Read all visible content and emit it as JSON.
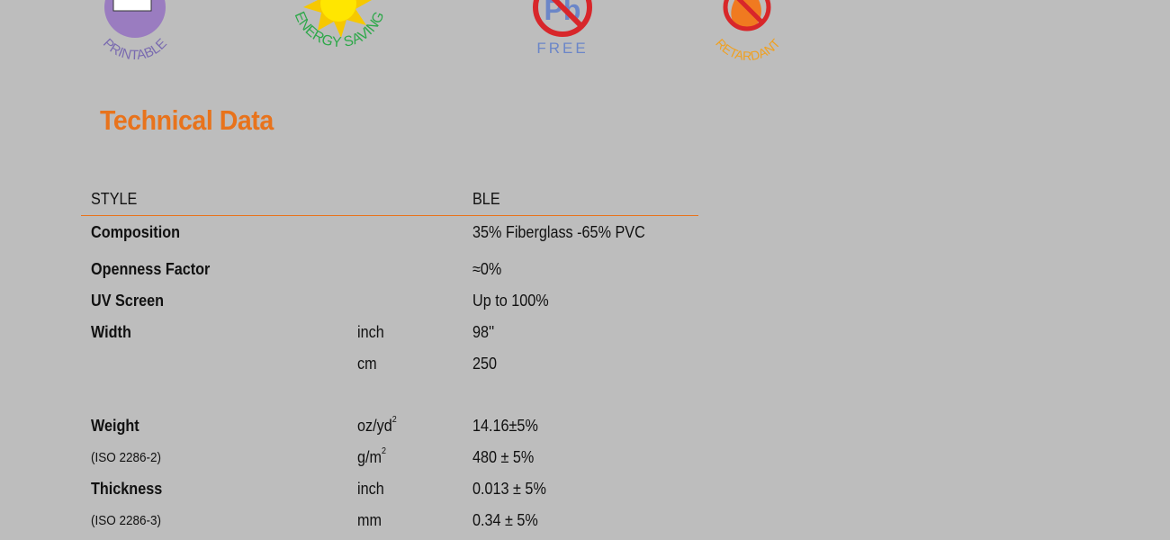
{
  "badges": [
    {
      "label": "PRINTABLE",
      "icon": "printer-icon",
      "color": "#7a6bb0"
    },
    {
      "label": "ENERGY SAVING",
      "icon": "sun-icon",
      "color": "#2ea84a"
    },
    {
      "label": "FREE",
      "icon": "lead-free-icon",
      "color": "#6b86c8"
    },
    {
      "label": "RETARDANT",
      "icon": "flame-retardant-icon",
      "color": "#f0a020"
    }
  ],
  "lead_symbol": "Pb",
  "title": "Technical Data",
  "accent": "#e8731c",
  "header": {
    "label": "STYLE",
    "value": "BLE"
  },
  "rows": [
    {
      "label": "Composition",
      "unit": "",
      "value": "35% Fiberglass -65% PVC"
    },
    {
      "label": "Openness Factor",
      "unit": "",
      "value": "≈0%"
    },
    {
      "label": "UV Screen",
      "unit": "",
      "value": "Up to 100%"
    },
    {
      "label": "Width",
      "unit": "inch",
      "value": "98''"
    },
    {
      "label": "",
      "unit": "cm",
      "value": "250"
    },
    {
      "label": "Weight",
      "unit": "oz/yd",
      "unit_sup": "2",
      "value": "14.16±5%"
    },
    {
      "label": "(ISO 2286-2)",
      "unit": "g/m",
      "unit_sup": "2",
      "value": "480 ± 5%"
    },
    {
      "label": "Thickness",
      "unit": "inch",
      "value": "0.013 ± 5%"
    },
    {
      "label": "(ISO 2286-3)",
      "unit": "mm",
      "value": "0.34 ± 5%"
    }
  ]
}
